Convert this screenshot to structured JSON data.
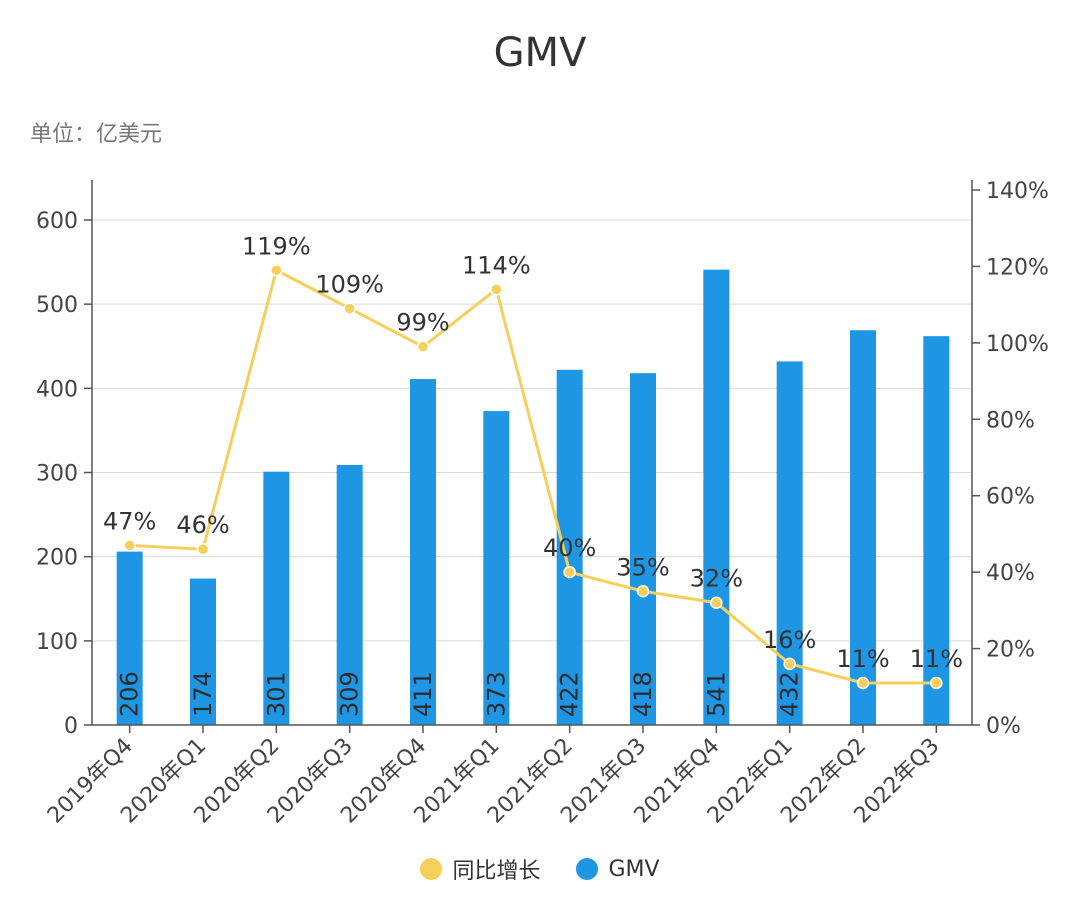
{
  "title": "GMV",
  "unit_label": "单位：亿美元",
  "colors": {
    "bar": "#1e96e4",
    "line": "#f6cf5b",
    "grid": "#d9d9d9",
    "axis": "#555555",
    "text": "#444444"
  },
  "legend": {
    "growth": "同比增长",
    "gmv": "GMV"
  },
  "chart_data": {
    "type": "bar",
    "title": "GMV",
    "categories": [
      "2019年Q4",
      "2020年Q1",
      "2020年Q2",
      "2020年Q3",
      "2020年Q4",
      "2021年Q1",
      "2021年Q2",
      "2021年Q3",
      "2021年Q4",
      "2022年Q1",
      "2022年Q2",
      "2022年Q3"
    ],
    "series": [
      {
        "name": "GMV",
        "type": "bar",
        "axis": "left",
        "values": [
          206,
          174,
          301,
          309,
          411,
          373,
          422,
          418,
          541,
          432,
          469,
          462
        ],
        "labels": [
          "206",
          "174",
          "301",
          "309",
          "411",
          "373",
          "422",
          "418",
          "541",
          "432",
          "",
          ""
        ]
      },
      {
        "name": "同比增长",
        "type": "line",
        "axis": "right",
        "values": [
          47,
          46,
          119,
          109,
          99,
          114,
          40,
          35,
          32,
          16,
          11,
          11
        ],
        "labels": [
          "47%",
          "46%",
          "119%",
          "109%",
          "99%",
          "114%",
          "40%",
          "35%",
          "32%",
          "16%",
          "11%",
          "11%"
        ]
      }
    ],
    "left_axis": {
      "min": 0,
      "max": 600,
      "ticks": [
        "0",
        "100",
        "200",
        "300",
        "400",
        "500",
        "600"
      ]
    },
    "right_axis": {
      "min": 0,
      "max": 140,
      "ticks": [
        "0%",
        "20%",
        "40%",
        "60%",
        "80%",
        "100%",
        "120%",
        "140%"
      ]
    },
    "grid": true,
    "legend_position": "bottom"
  }
}
